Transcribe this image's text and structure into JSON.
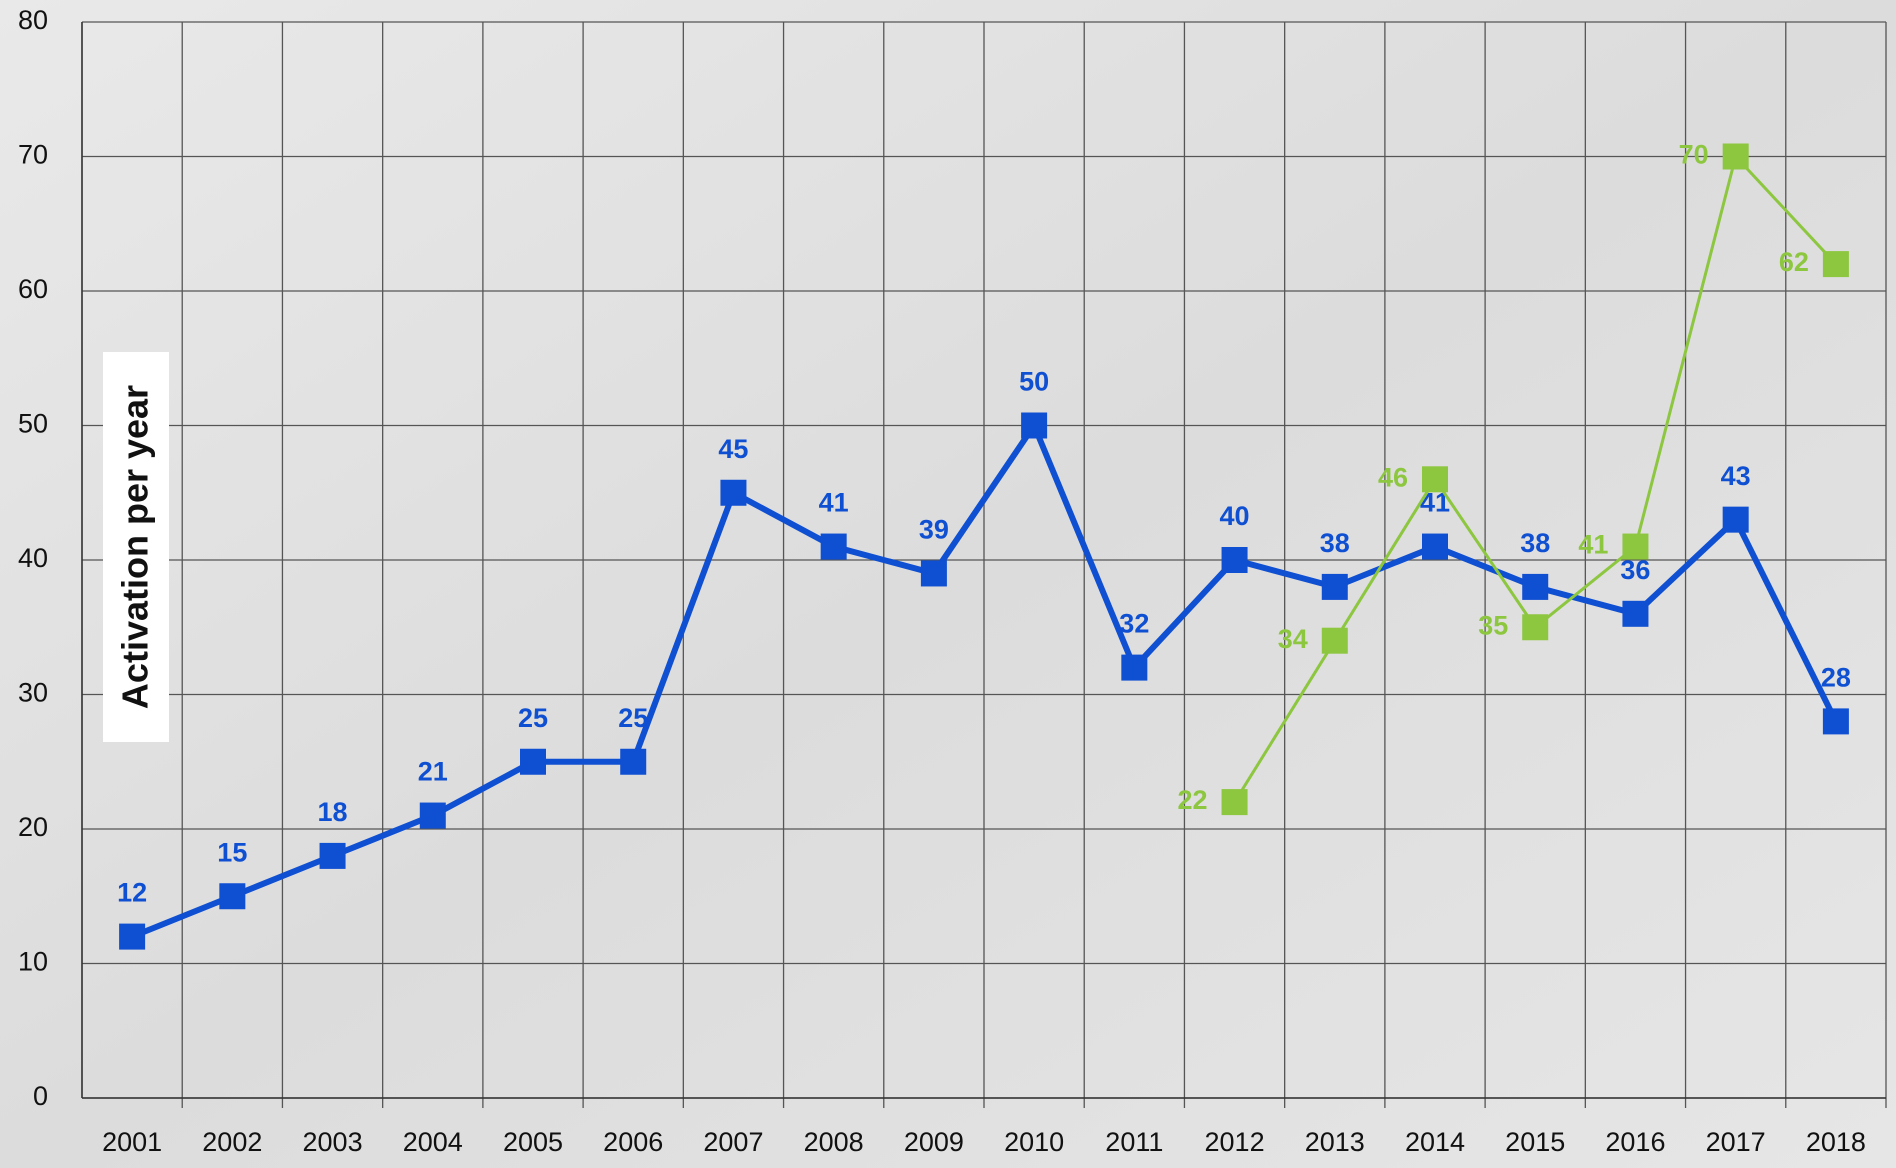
{
  "chart_data": {
    "type": "line",
    "ylabel": "Activation per year",
    "categories": [
      "2001",
      "2002",
      "2003",
      "2004",
      "2005",
      "2006",
      "2007",
      "2008",
      "2009",
      "2010",
      "2011",
      "2012",
      "2013",
      "2014",
      "2015",
      "2016",
      "2017",
      "2018"
    ],
    "series": [
      {
        "color": "#0f4fd2",
        "values": [
          12,
          15,
          18,
          21,
          25,
          25,
          45,
          41,
          39,
          50,
          32,
          40,
          38,
          41,
          38,
          36,
          43,
          28
        ]
      },
      {
        "color": "#8dc63f",
        "values": [
          null,
          null,
          null,
          null,
          null,
          null,
          null,
          null,
          null,
          null,
          null,
          22,
          34,
          46,
          35,
          41,
          70,
          62
        ]
      }
    ],
    "ylim": [
      0,
      80
    ],
    "yticks": [
      0,
      10,
      20,
      30,
      40,
      50,
      60,
      70,
      80
    ],
    "grid": true
  }
}
